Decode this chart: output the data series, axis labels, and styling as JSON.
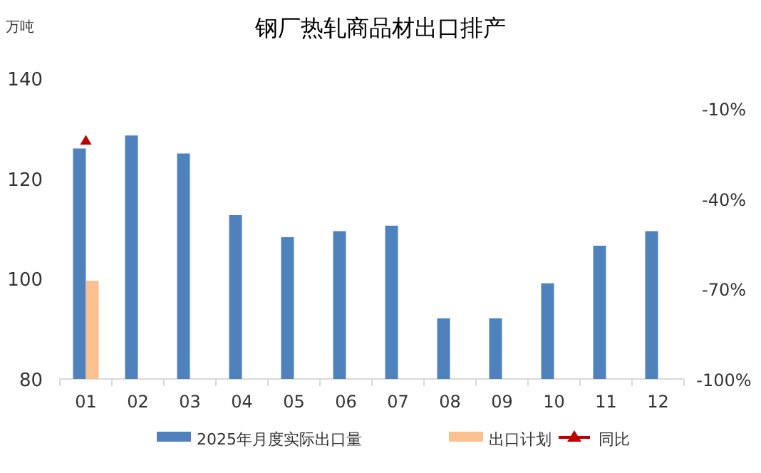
{
  "chart_data": {
    "type": "bar",
    "title": "钢厂热轧商品材出口排产",
    "ylabel": "万吨",
    "categories": [
      "01",
      "02",
      "03",
      "04",
      "05",
      "06",
      "07",
      "08",
      "09",
      "10",
      "11",
      "12"
    ],
    "series": [
      {
        "name": "2025年月度实际出口量",
        "color": "#4f81bd",
        "values": [
          126,
          128.6,
          125,
          112.7,
          108.3,
          109.5,
          110.6,
          92.1,
          92.1,
          99.1,
          106.6,
          109.5
        ]
      },
      {
        "name": "出口计划",
        "color": "#fac090",
        "values": [
          99.6,
          null,
          null,
          null,
          null,
          null,
          null,
          null,
          null,
          null,
          null,
          null
        ]
      },
      {
        "name": "同比",
        "color": "#c00000",
        "type": "line",
        "axis": "y2",
        "marker": "triangle",
        "values": [
          -21,
          null,
          null,
          null,
          null,
          null,
          null,
          null,
          null,
          null,
          null,
          null
        ]
      }
    ],
    "ylim": [
      80,
      140
    ],
    "yticks": [
      80,
      100,
      120,
      140
    ],
    "y2lim": [
      -100,
      0
    ],
    "y2ticks": [
      {
        "value": -100,
        "label": "-100%"
      },
      {
        "value": -70,
        "label": "-70%"
      },
      {
        "value": -40,
        "label": "-40%"
      },
      {
        "value": -10,
        "label": "-10%"
      }
    ],
    "grid": false,
    "legend": "bottom"
  }
}
